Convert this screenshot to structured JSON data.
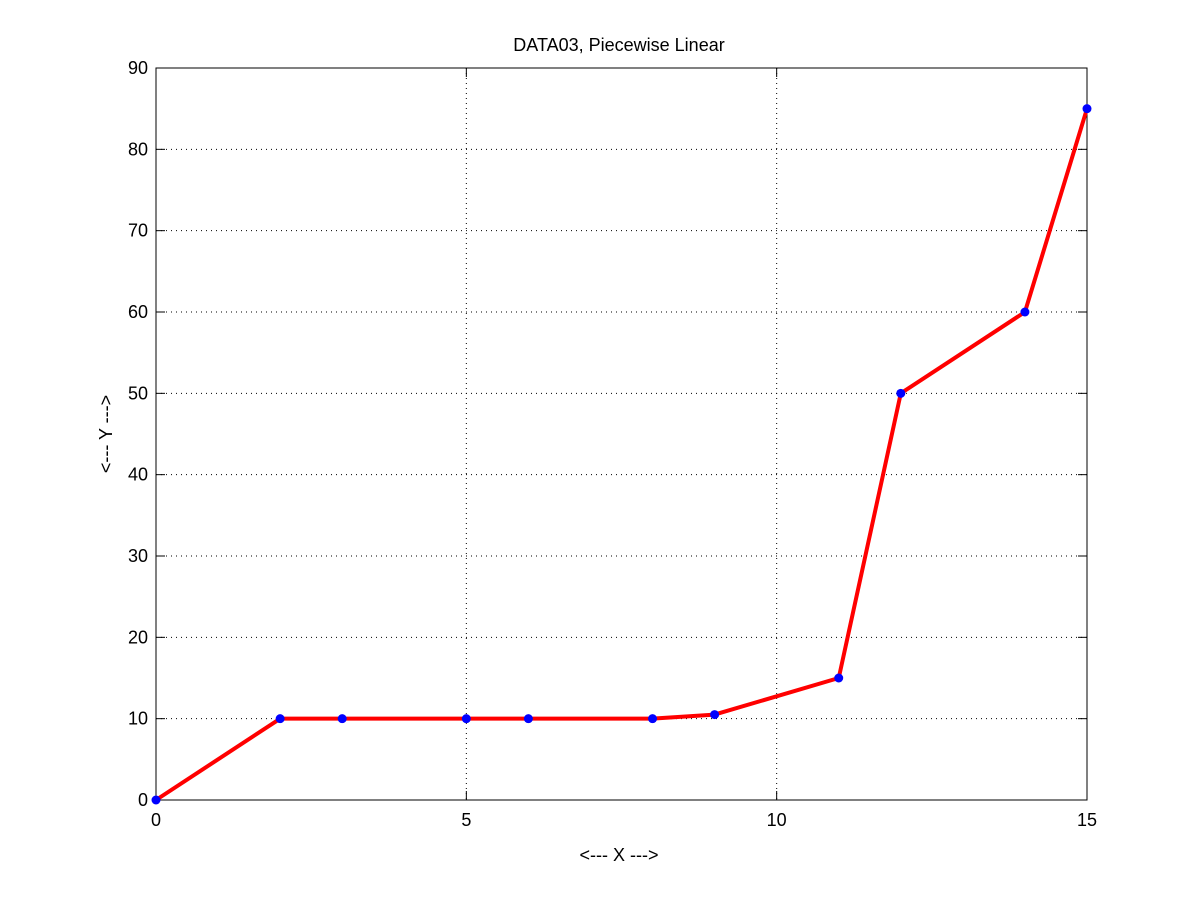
{
  "chart_data": {
    "type": "line",
    "title": "DATA03, Piecewise Linear",
    "xlabel": "<--- X --->",
    "ylabel": "<--- Y --->",
    "xlim": [
      0,
      15
    ],
    "ylim": [
      0,
      90
    ],
    "xticks": [
      0,
      5,
      10,
      15
    ],
    "yticks": [
      0,
      10,
      20,
      30,
      40,
      50,
      60,
      70,
      80,
      90
    ],
    "grid": true,
    "series": [
      {
        "x": [
          0,
          2,
          3,
          5,
          6,
          8,
          9,
          11,
          12,
          14,
          15
        ],
        "y": [
          0,
          10,
          10,
          10,
          10,
          10,
          10.5,
          15,
          50,
          60,
          85
        ],
        "line_color": "#ff0000",
        "marker_color": "#0000ff"
      }
    ]
  }
}
